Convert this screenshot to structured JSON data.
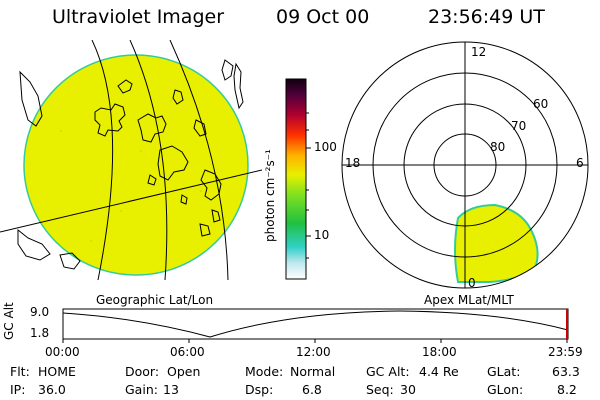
{
  "header": {
    "instrument": "Ultraviolet Imager",
    "date": "09 Oct 00",
    "time": "23:56:49 UT"
  },
  "colorbar": {
    "unit_label": "photon cm⁻²s⁻¹",
    "ticks": [
      {
        "label": "100",
        "value": 100
      },
      {
        "label": "10",
        "value": 10
      }
    ]
  },
  "polar_plot": {
    "mlt_labels": {
      "top": "12",
      "left": "18",
      "right": "6",
      "bottom": "0"
    },
    "lat_labels": [
      "60",
      "70",
      "80"
    ]
  },
  "panel_labels": {
    "geo": "Geographic Lat/Lon",
    "apex": "Apex MLat/MLT"
  },
  "timeline": {
    "ylabel": "GC Alt",
    "yticks": [
      "9.0",
      "1.8"
    ],
    "xticks": [
      "00:00",
      "06:00",
      "12:00",
      "18:00",
      "23:59"
    ]
  },
  "info": {
    "row1": [
      {
        "label": "Flt:",
        "value": "HOME"
      },
      {
        "label": "Door:",
        "value": "Open"
      },
      {
        "label": "Mode:",
        "value": "Normal"
      },
      {
        "label": "GC Alt:",
        "value": "4.4 Re"
      },
      {
        "label": "GLat:",
        "value": "63.3"
      }
    ],
    "row2": [
      {
        "label": "IP:",
        "value": "36.0"
      },
      {
        "label": "Gain:",
        "value": "13"
      },
      {
        "label": "Dsp:",
        "value": "6.8"
      },
      {
        "label": "Seq:",
        "value": "30"
      },
      {
        "label": "GLon:",
        "value": "8.2"
      }
    ]
  },
  "colors": {
    "emission_fill": "#e8f000",
    "limb_outline": "#33cc99",
    "timeline_marker": "#cc0000"
  }
}
